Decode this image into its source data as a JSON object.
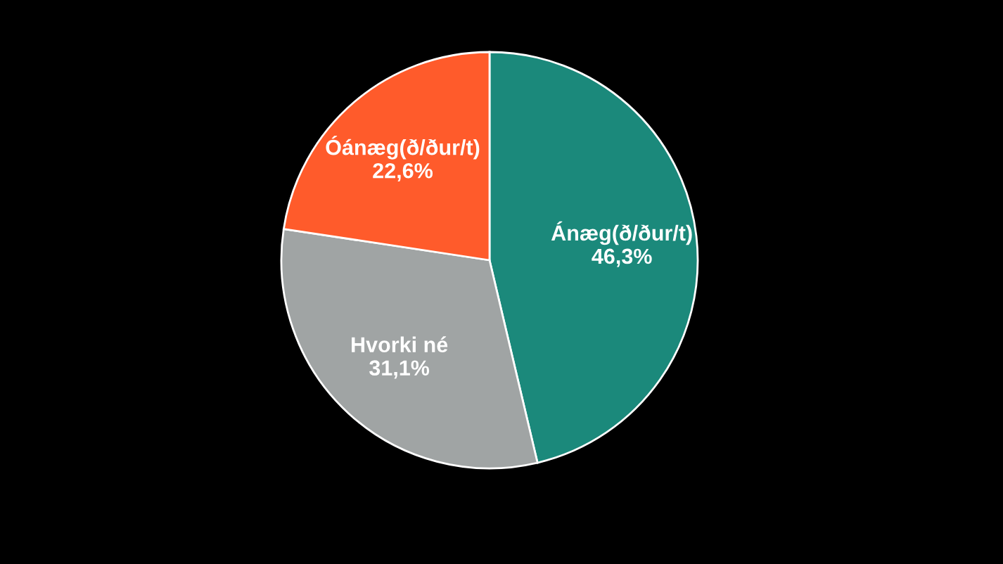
{
  "chart_data": {
    "type": "pie",
    "categories": [
      "Ánæg(ð/ður/t)",
      "Hvorki né",
      "Óánæg(ð/ður/t)"
    ],
    "values": [
      46.3,
      31.1,
      22.6
    ],
    "value_labels": [
      "46,3%",
      "31,1%",
      "22,6%"
    ],
    "colors": [
      "#1b897b",
      "#a0a4a4",
      "#ff5b2b"
    ]
  }
}
